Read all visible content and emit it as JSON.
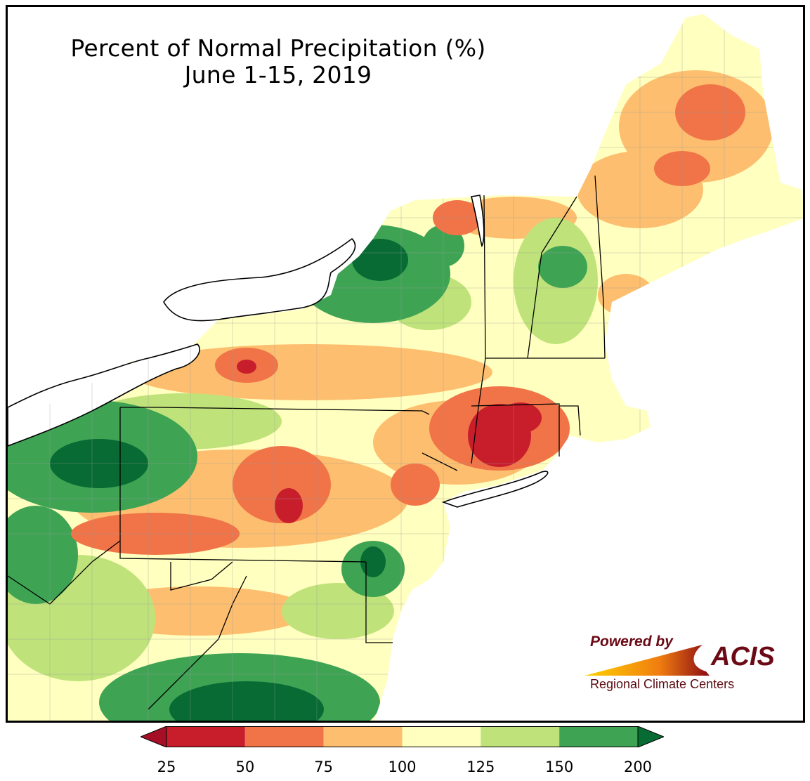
{
  "title": {
    "line1": "Percent of Normal Precipitation (%)",
    "line2": "June 1-15, 2019"
  },
  "logo": {
    "powered": "Powered by",
    "name": "ACIS",
    "subtitle": "Regional Climate Centers"
  },
  "legend": {
    "ticks": [
      "25",
      "50",
      "75",
      "100",
      "125",
      "150",
      "200"
    ],
    "bins": [
      {
        "range": "<25",
        "color": "#a50f26"
      },
      {
        "range": "25-50",
        "color": "#c81e2c"
      },
      {
        "range": "50-75",
        "color": "#f07448"
      },
      {
        "range": "75-100",
        "color": "#fdbf6f"
      },
      {
        "range": "100-125",
        "color": "#ffffbf"
      },
      {
        "range": "125-150",
        "color": "#bfe37a"
      },
      {
        "range": "150-200",
        "color": "#3fa354"
      },
      {
        "range": ">200",
        "color": "#076b33"
      }
    ]
  },
  "colors": {
    "water": "#ffffff",
    "state_border": "#000000",
    "county_border": "#9a9a9a",
    "brand": "#6b0a14"
  }
}
